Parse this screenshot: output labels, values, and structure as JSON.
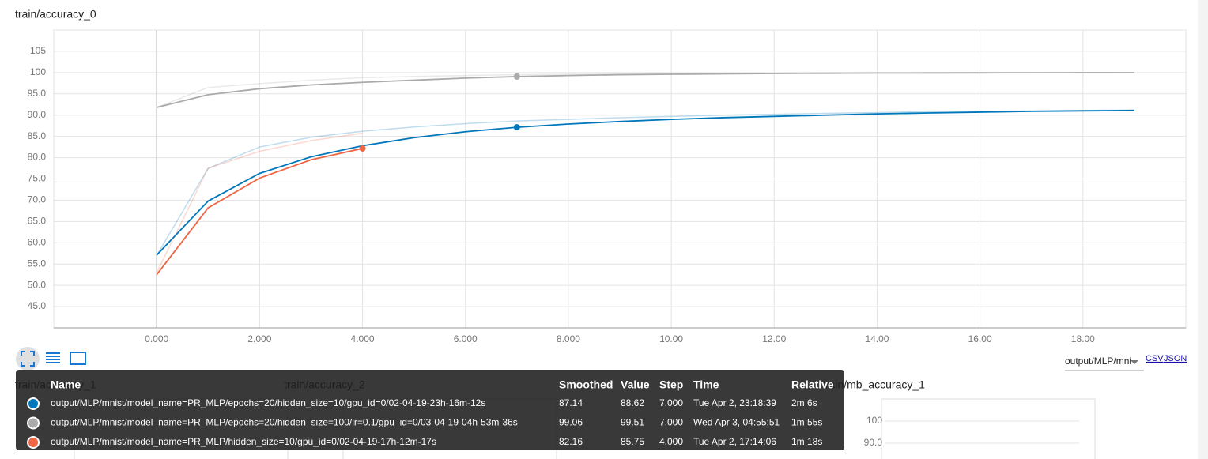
{
  "chart_data": {
    "type": "line",
    "title": "train/accuracy_0",
    "x": [
      0,
      1,
      2,
      3,
      4,
      5,
      6,
      7,
      8,
      9,
      10,
      11,
      12,
      13,
      14,
      15,
      16,
      17,
      18,
      19
    ],
    "xlim": [
      -2,
      20
    ],
    "xticks": [
      {
        "value": 0,
        "label": "0.000"
      },
      {
        "value": 2,
        "label": "2.000"
      },
      {
        "value": 4,
        "label": "4.000"
      },
      {
        "value": 6,
        "label": "6.000"
      },
      {
        "value": 8,
        "label": "8.000"
      },
      {
        "value": 10,
        "label": "10.00"
      },
      {
        "value": 12,
        "label": "12.00"
      },
      {
        "value": 14,
        "label": "14.00"
      },
      {
        "value": 16,
        "label": "16.00"
      },
      {
        "value": 18,
        "label": "18.00"
      }
    ],
    "ylim": [
      40,
      110
    ],
    "yticks": [
      {
        "value": 45,
        "label": "45.0"
      },
      {
        "value": 50,
        "label": "50.0"
      },
      {
        "value": 55,
        "label": "55.0"
      },
      {
        "value": 60,
        "label": "60.0"
      },
      {
        "value": 65,
        "label": "65.0"
      },
      {
        "value": 70,
        "label": "70.0"
      },
      {
        "value": 75,
        "label": "75.0"
      },
      {
        "value": 80,
        "label": "80.0"
      },
      {
        "value": 85,
        "label": "85.0"
      },
      {
        "value": 90,
        "label": "90.0"
      },
      {
        "value": 95,
        "label": "95.0"
      },
      100,
      105
    ],
    "grid": true,
    "series": [
      {
        "name": "output/MLP/mnist/model_name=PR_MLP/epochs=20/hidden_size=10/gpu_id=0/02-04-19-23h-16m-12s",
        "color": "#0077bb",
        "values": [
          57.1,
          69.8,
          76.3,
          80.2,
          82.8,
          84.7,
          86.1,
          87.14,
          87.9,
          88.5,
          89.0,
          89.4,
          89.7,
          90.0,
          90.3,
          90.5,
          90.7,
          90.9,
          91.0,
          91.1
        ],
        "raw_values": [
          57,
          77.5,
          82.5,
          84.8,
          86.2,
          87.2,
          88,
          88.62,
          89,
          89.4,
          89.7,
          90,
          90.2,
          90.4,
          90.6,
          90.8,
          90.9,
          91,
          91.1,
          91.2
        ],
        "step": {
          "value": 7,
          "label": "7.000"
        },
        "time": "Tue Apr 2, 23:18:39",
        "relative": "2m 6s"
      },
      {
        "name": "output/MLP/mnist/model_name=PR_MLP/epochs=20/hidden_size=100/lr=0.1/gpu_id=0/03-04-19-04h-53m-36s",
        "color": "#aaaaaa",
        "values": [
          91.8,
          94.8,
          96.2,
          97.1,
          97.7,
          98.2,
          98.7,
          99.06,
          99.3,
          99.5,
          99.6,
          99.7,
          99.8,
          99.85,
          99.9,
          99.92,
          99.94,
          99.95,
          99.96,
          99.97
        ],
        "raw_values": [
          91.8,
          96.5,
          97.4,
          98.2,
          98.8,
          99.1,
          99.3,
          99.51,
          99.6,
          99.65,
          99.7,
          99.75,
          99.8,
          99.82,
          99.85,
          99.87,
          99.9,
          99.9,
          99.92,
          99.93
        ],
        "step": {
          "value": 7,
          "label": "7.000"
        },
        "time": "Wed Apr 3, 04:55:51",
        "relative": "1m 55s"
      },
      {
        "name": "output/MLP/mnist/model_name=PR_MLP/hidden_size=10/gpu_id=0/02-04-19-17h-12m-17s",
        "color": "#ee6644",
        "values": [
          52.5,
          68.2,
          75.2,
          79.5,
          82.16,
          null,
          null,
          null,
          null,
          null,
          null,
          null,
          null,
          null,
          null,
          null,
          null,
          null,
          null,
          null
        ],
        "raw_values": [
          53,
          77.5,
          81.5,
          84,
          85.75,
          null,
          null,
          null,
          null,
          null,
          null,
          null,
          null,
          null,
          null,
          null,
          null,
          null,
          null,
          null
        ],
        "step": {
          "value": 4,
          "label": "4.000"
        },
        "time": "Tue Apr 2, 17:14:06",
        "relative": "1m 18s"
      }
    ]
  },
  "tooltip": {
    "headers": [
      "Name",
      "Smoothed",
      "Value",
      "Step",
      "Time",
      "Relative"
    ]
  },
  "run_selector": "output/MLP/mni",
  "links": [
    "CSV",
    "JSON"
  ],
  "mini_charts": [
    {
      "title": "train/accuracy_1"
    },
    {
      "title": "train/accuracy_2"
    },
    {
      "title": "train/mb_accuracy_1",
      "yticks": [
        100,
        {
          "value": 90,
          "label": "90.0"
        }
      ]
    }
  ]
}
